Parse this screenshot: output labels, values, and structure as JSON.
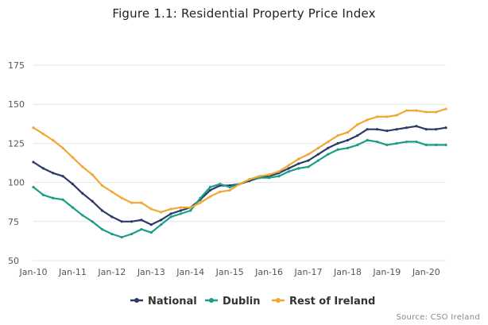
{
  "chart_data": {
    "type": "line",
    "title": "Figure 1.1: Residential Property Price Index",
    "xlabel": "",
    "ylabel": "",
    "ylim": [
      50,
      175
    ],
    "yticks": [
      50,
      75,
      100,
      125,
      150,
      175
    ],
    "x_tick_labels": [
      "Jan-10",
      "Jan-11",
      "Jan-12",
      "Jan-13",
      "Jan-14",
      "Jan-15",
      "Jan-16",
      "Jan-17",
      "Jan-18",
      "Jan-19",
      "Jan-20"
    ],
    "x_start": "Jan-10",
    "x_end": "Jul-20",
    "grid": "horizontal",
    "legend_position": "bottom",
    "source": "Source: CSO Ireland",
    "series": [
      {
        "name": "National",
        "color": "#2b3a67",
        "points": [
          {
            "x": "Jan-10",
            "y": 113
          },
          {
            "x": "Apr-10",
            "y": 109
          },
          {
            "x": "Jul-10",
            "y": 106
          },
          {
            "x": "Oct-10",
            "y": 104
          },
          {
            "x": "Jan-11",
            "y": 99
          },
          {
            "x": "Apr-11",
            "y": 93
          },
          {
            "x": "Jul-11",
            "y": 88
          },
          {
            "x": "Oct-11",
            "y": 82
          },
          {
            "x": "Jan-12",
            "y": 78
          },
          {
            "x": "Apr-12",
            "y": 75
          },
          {
            "x": "Jul-12",
            "y": 75
          },
          {
            "x": "Oct-12",
            "y": 76
          },
          {
            "x": "Jan-13",
            "y": 73
          },
          {
            "x": "Apr-13",
            "y": 76
          },
          {
            "x": "Jul-13",
            "y": 80
          },
          {
            "x": "Oct-13",
            "y": 82
          },
          {
            "x": "Jan-14",
            "y": 84
          },
          {
            "x": "Apr-14",
            "y": 89
          },
          {
            "x": "Jul-14",
            "y": 95
          },
          {
            "x": "Oct-14",
            "y": 98
          },
          {
            "x": "Jan-15",
            "y": 98
          },
          {
            "x": "Apr-15",
            "y": 99
          },
          {
            "x": "Jul-15",
            "y": 101
          },
          {
            "x": "Oct-15",
            "y": 103
          },
          {
            "x": "Jan-16",
            "y": 104
          },
          {
            "x": "Apr-16",
            "y": 106
          },
          {
            "x": "Jul-16",
            "y": 109
          },
          {
            "x": "Oct-16",
            "y": 112
          },
          {
            "x": "Jan-17",
            "y": 114
          },
          {
            "x": "Apr-17",
            "y": 118
          },
          {
            "x": "Jul-17",
            "y": 122
          },
          {
            "x": "Oct-17",
            "y": 125
          },
          {
            "x": "Jan-18",
            "y": 127
          },
          {
            "x": "Apr-18",
            "y": 130
          },
          {
            "x": "Jul-18",
            "y": 134
          },
          {
            "x": "Oct-18",
            "y": 134
          },
          {
            "x": "Jan-19",
            "y": 133
          },
          {
            "x": "Apr-19",
            "y": 134
          },
          {
            "x": "Jul-19",
            "y": 135
          },
          {
            "x": "Oct-19",
            "y": 136
          },
          {
            "x": "Jan-20",
            "y": 134
          },
          {
            "x": "Apr-20",
            "y": 134
          },
          {
            "x": "Jul-20",
            "y": 135
          }
        ]
      },
      {
        "name": "Dublin",
        "color": "#1a9e87",
        "points": [
          {
            "x": "Jan-10",
            "y": 97
          },
          {
            "x": "Apr-10",
            "y": 92
          },
          {
            "x": "Jul-10",
            "y": 90
          },
          {
            "x": "Oct-10",
            "y": 89
          },
          {
            "x": "Jan-11",
            "y": 84
          },
          {
            "x": "Apr-11",
            "y": 79
          },
          {
            "x": "Jul-11",
            "y": 75
          },
          {
            "x": "Oct-11",
            "y": 70
          },
          {
            "x": "Jan-12",
            "y": 67
          },
          {
            "x": "Apr-12",
            "y": 65
          },
          {
            "x": "Jul-12",
            "y": 67
          },
          {
            "x": "Oct-12",
            "y": 70
          },
          {
            "x": "Jan-13",
            "y": 68
          },
          {
            "x": "Apr-13",
            "y": 73
          },
          {
            "x": "Jul-13",
            "y": 78
          },
          {
            "x": "Oct-13",
            "y": 80
          },
          {
            "x": "Jan-14",
            "y": 82
          },
          {
            "x": "Apr-14",
            "y": 90
          },
          {
            "x": "Jul-14",
            "y": 97
          },
          {
            "x": "Oct-14",
            "y": 99
          },
          {
            "x": "Jan-15",
            "y": 97
          },
          {
            "x": "Apr-15",
            "y": 99
          },
          {
            "x": "Jul-15",
            "y": 102
          },
          {
            "x": "Oct-15",
            "y": 103
          },
          {
            "x": "Jan-16",
            "y": 103
          },
          {
            "x": "Apr-16",
            "y": 104
          },
          {
            "x": "Jul-16",
            "y": 107
          },
          {
            "x": "Oct-16",
            "y": 109
          },
          {
            "x": "Jan-17",
            "y": 110
          },
          {
            "x": "Apr-17",
            "y": 114
          },
          {
            "x": "Jul-17",
            "y": 118
          },
          {
            "x": "Oct-17",
            "y": 121
          },
          {
            "x": "Jan-18",
            "y": 122
          },
          {
            "x": "Apr-18",
            "y": 124
          },
          {
            "x": "Jul-18",
            "y": 127
          },
          {
            "x": "Oct-18",
            "y": 126
          },
          {
            "x": "Jan-19",
            "y": 124
          },
          {
            "x": "Apr-19",
            "y": 125
          },
          {
            "x": "Jul-19",
            "y": 126
          },
          {
            "x": "Oct-19",
            "y": 126
          },
          {
            "x": "Jan-20",
            "y": 124
          },
          {
            "x": "Apr-20",
            "y": 124
          },
          {
            "x": "Jul-20",
            "y": 124
          }
        ]
      },
      {
        "name": "Rest of Ireland",
        "color": "#f0a832",
        "points": [
          {
            "x": "Jan-10",
            "y": 135
          },
          {
            "x": "Apr-10",
            "y": 131
          },
          {
            "x": "Jul-10",
            "y": 127
          },
          {
            "x": "Oct-10",
            "y": 122
          },
          {
            "x": "Jan-11",
            "y": 116
          },
          {
            "x": "Apr-11",
            "y": 110
          },
          {
            "x": "Jul-11",
            "y": 105
          },
          {
            "x": "Oct-11",
            "y": 98
          },
          {
            "x": "Jan-12",
            "y": 94
          },
          {
            "x": "Apr-12",
            "y": 90
          },
          {
            "x": "Jul-12",
            "y": 87
          },
          {
            "x": "Oct-12",
            "y": 87
          },
          {
            "x": "Jan-13",
            "y": 83
          },
          {
            "x": "Apr-13",
            "y": 81
          },
          {
            "x": "Jul-13",
            "y": 83
          },
          {
            "x": "Oct-13",
            "y": 84
          },
          {
            "x": "Jan-14",
            "y": 84
          },
          {
            "x": "Apr-14",
            "y": 87
          },
          {
            "x": "Jul-14",
            "y": 91
          },
          {
            "x": "Oct-14",
            "y": 94
          },
          {
            "x": "Jan-15",
            "y": 95
          },
          {
            "x": "Apr-15",
            "y": 99
          },
          {
            "x": "Jul-15",
            "y": 102
          },
          {
            "x": "Oct-15",
            "y": 104
          },
          {
            "x": "Jan-16",
            "y": 105
          },
          {
            "x": "Apr-16",
            "y": 107
          },
          {
            "x": "Jul-16",
            "y": 111
          },
          {
            "x": "Oct-16",
            "y": 115
          },
          {
            "x": "Jan-17",
            "y": 118
          },
          {
            "x": "Apr-17",
            "y": 122
          },
          {
            "x": "Jul-17",
            "y": 126
          },
          {
            "x": "Oct-17",
            "y": 130
          },
          {
            "x": "Jan-18",
            "y": 132
          },
          {
            "x": "Apr-18",
            "y": 137
          },
          {
            "x": "Jul-18",
            "y": 140
          },
          {
            "x": "Oct-18",
            "y": 142
          },
          {
            "x": "Jan-19",
            "y": 142
          },
          {
            "x": "Apr-19",
            "y": 143
          },
          {
            "x": "Jul-19",
            "y": 146
          },
          {
            "x": "Oct-19",
            "y": 146
          },
          {
            "x": "Jan-20",
            "y": 145
          },
          {
            "x": "Apr-20",
            "y": 145
          },
          {
            "x": "Jul-20",
            "y": 147
          }
        ]
      }
    ]
  }
}
